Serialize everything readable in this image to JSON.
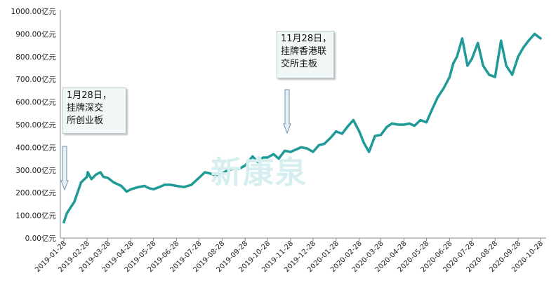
{
  "chart_data": {
    "type": "line",
    "y_unit": "亿元",
    "ylim": [
      0,
      1000
    ],
    "yticks": [
      "0.00亿元",
      "100.00亿元",
      "200.00亿元",
      "300.00亿元",
      "400.00亿元",
      "500.00亿元",
      "600.00亿元",
      "700.00亿元",
      "800.00亿元",
      "900.00亿元",
      "1000.00亿元"
    ],
    "xticks": [
      "2019-01-28",
      "2019-02-28",
      "2019-03-28",
      "2019-04-28",
      "2019-05-28",
      "2019-06-28",
      "2019-07-28",
      "2019-08-28",
      "2019-09-28",
      "2019-10-28",
      "2019-11-28",
      "2019-12-28",
      "2020-01-28",
      "2020-02-28",
      "2020-03-28",
      "2020-04-28",
      "2020-05-28",
      "2020-06-28",
      "2020-07-28",
      "2020-08-28",
      "2020-09-28",
      "2020-10-28"
    ],
    "series_color": "#1f9a96",
    "grid": false,
    "series": [
      {
        "x": [
          "2019-01-28",
          "2019-02-01",
          "2019-02-11",
          "2019-02-20",
          "2019-02-28",
          "2019-03-01",
          "2019-03-06",
          "2019-03-12",
          "2019-03-18",
          "2019-03-22",
          "2019-03-28",
          "2019-04-05",
          "2019-04-15",
          "2019-04-22",
          "2019-04-28",
          "2019-05-08",
          "2019-05-16",
          "2019-05-22",
          "2019-05-28",
          "2019-06-05",
          "2019-06-12",
          "2019-06-20",
          "2019-06-28",
          "2019-07-08",
          "2019-07-18",
          "2019-07-28",
          "2019-08-05",
          "2019-08-12",
          "2019-08-20",
          "2019-08-28",
          "2019-09-05",
          "2019-09-12",
          "2019-09-20",
          "2019-09-28",
          "2019-10-08",
          "2019-10-15",
          "2019-10-22",
          "2019-10-28",
          "2019-11-05",
          "2019-11-12",
          "2019-11-20",
          "2019-11-28",
          "2019-12-05",
          "2019-12-12",
          "2019-12-20",
          "2019-12-28",
          "2020-01-05",
          "2020-01-12",
          "2020-01-20",
          "2020-01-28",
          "2020-02-05",
          "2020-02-12",
          "2020-02-20",
          "2020-02-28",
          "2020-03-05",
          "2020-03-12",
          "2020-03-20",
          "2020-03-28",
          "2020-04-05",
          "2020-04-12",
          "2020-04-20",
          "2020-04-28",
          "2020-05-05",
          "2020-05-12",
          "2020-05-20",
          "2020-05-28",
          "2020-06-05",
          "2020-06-12",
          "2020-06-20",
          "2020-06-28",
          "2020-07-03",
          "2020-07-08",
          "2020-07-15",
          "2020-07-22",
          "2020-07-28",
          "2020-08-05",
          "2020-08-12",
          "2020-08-20",
          "2020-08-28",
          "2020-09-05",
          "2020-09-12",
          "2020-09-20",
          "2020-09-28",
          "2020-10-05",
          "2020-10-12",
          "2020-10-20",
          "2020-10-28"
        ],
        "values": [
          70,
          110,
          160,
          245,
          270,
          290,
          260,
          280,
          290,
          270,
          265,
          245,
          230,
          205,
          215,
          225,
          230,
          220,
          215,
          225,
          235,
          235,
          230,
          225,
          235,
          265,
          290,
          285,
          275,
          285,
          300,
          305,
          305,
          320,
          360,
          335,
          355,
          355,
          370,
          350,
          385,
          380,
          390,
          400,
          395,
          380,
          410,
          415,
          440,
          470,
          460,
          490,
          520,
          470,
          420,
          380,
          450,
          455,
          490,
          505,
          500,
          500,
          505,
          495,
          520,
          510,
          570,
          620,
          660,
          710,
          770,
          800,
          880,
          760,
          790,
          860,
          760,
          720,
          710,
          870,
          760,
          720,
          800,
          840,
          870,
          900,
          880
        ]
      }
    ],
    "annotations": [
      {
        "lines": [
          "1月28日，",
          "挂牌深交",
          "所创业板"
        ],
        "date": "2019-01-28"
      },
      {
        "lines": [
          "11月28日，",
          "挂牌香港联",
          "交所主板"
        ],
        "date": "2019-11-28"
      }
    ]
  },
  "watermark": "新康泉"
}
